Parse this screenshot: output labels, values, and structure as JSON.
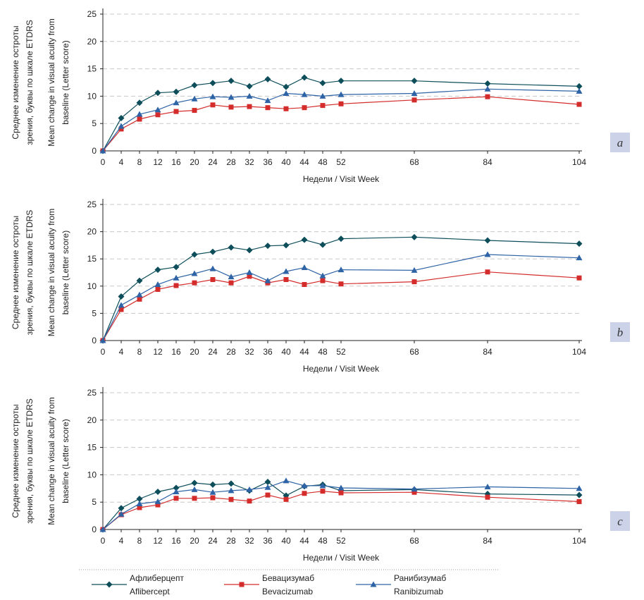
{
  "chart_data": [
    {
      "type": "line",
      "panel_label": "a",
      "y_axis_label_ru": [
        "Среднее изменение остроты",
        "зрения, буквы по шкале ETDRS"
      ],
      "y_axis_label_en": [
        "Mean change in visual acuity from",
        "baseline (Letter score)"
      ],
      "xlabel": "Недели / Visit Week",
      "ylim": [
        0,
        25
      ],
      "yticks": [
        0,
        5,
        10,
        15,
        20,
        25
      ],
      "x": [
        0,
        4,
        8,
        12,
        16,
        20,
        24,
        28,
        32,
        36,
        40,
        44,
        48,
        52,
        68,
        84,
        104
      ],
      "series": [
        {
          "name": "Афлиберцепт / Aflibercept",
          "values": [
            0,
            6.0,
            8.8,
            10.6,
            10.8,
            12.0,
            12.4,
            12.8,
            11.8,
            13.1,
            11.7,
            13.4,
            12.4,
            12.8,
            12.8,
            12.3,
            11.8
          ]
        },
        {
          "name": "Бевацизумаб / Bevacizumab",
          "values": [
            0,
            4.0,
            5.8,
            6.6,
            7.2,
            7.4,
            8.4,
            8.0,
            8.1,
            7.9,
            7.7,
            7.9,
            8.3,
            8.6,
            9.3,
            9.9,
            8.5
          ]
        },
        {
          "name": "Ранибизумаб / Ranibizumab",
          "values": [
            0,
            4.5,
            6.7,
            7.5,
            8.8,
            9.5,
            9.9,
            9.8,
            10.0,
            9.2,
            10.5,
            10.3,
            10.0,
            10.3,
            10.5,
            11.3,
            10.9
          ]
        }
      ]
    },
    {
      "type": "line",
      "panel_label": "b",
      "y_axis_label_ru": [
        "Среднее изменение остроты",
        "зрения, буквы по шкале ETDRS"
      ],
      "y_axis_label_en": [
        "Mean change in visual acuity from",
        "baseline (Letter score)"
      ],
      "xlabel": "Недели / Visit Week",
      "ylim": [
        0,
        25
      ],
      "yticks": [
        0,
        5,
        10,
        15,
        20,
        25
      ],
      "x": [
        0,
        4,
        8,
        12,
        16,
        20,
        24,
        28,
        32,
        36,
        40,
        44,
        48,
        52,
        68,
        84,
        104
      ],
      "series": [
        {
          "name": "Афлиберцепт / Aflibercept",
          "values": [
            0,
            8.1,
            11.0,
            13.0,
            13.5,
            15.8,
            16.3,
            17.1,
            16.6,
            17.4,
            17.5,
            18.5,
            17.6,
            18.7,
            19.0,
            18.4,
            17.8
          ]
        },
        {
          "name": "Бевацизумаб / Bevacizumab",
          "values": [
            0,
            5.7,
            7.6,
            9.4,
            10.1,
            10.6,
            11.2,
            10.6,
            11.8,
            10.6,
            11.2,
            10.3,
            11.0,
            10.4,
            10.8,
            12.6,
            11.5
          ]
        },
        {
          "name": "Ранибизумаб / Ranibizumab",
          "values": [
            0,
            6.5,
            8.4,
            10.3,
            11.5,
            12.3,
            13.2,
            11.7,
            12.5,
            11.0,
            12.7,
            13.4,
            11.9,
            13.0,
            12.9,
            15.8,
            15.2
          ]
        }
      ]
    },
    {
      "type": "line",
      "panel_label": "c",
      "y_axis_label_ru": [
        "Среднее изменение остроты",
        "зрения, буквы по шкале ETDRS"
      ],
      "y_axis_label_en": [
        "Mean change in visual acuity from",
        "baseline (Letter score)"
      ],
      "xlabel": "Недели / Visit Week",
      "ylim": [
        0,
        25
      ],
      "yticks": [
        0,
        5,
        10,
        15,
        20,
        25
      ],
      "x": [
        0,
        4,
        8,
        12,
        16,
        20,
        24,
        28,
        32,
        36,
        40,
        44,
        48,
        52,
        68,
        84,
        104
      ],
      "series": [
        {
          "name": "Афлиберцепт / Aflibercept",
          "values": [
            0,
            3.9,
            5.6,
            6.9,
            7.6,
            8.5,
            8.2,
            8.4,
            7.1,
            8.7,
            6.2,
            7.9,
            8.2,
            7.1,
            7.3,
            6.5,
            6.3
          ]
        },
        {
          "name": "Бевацизумаб / Bevacizumab",
          "values": [
            0,
            2.7,
            4.0,
            4.5,
            5.7,
            5.7,
            5.8,
            5.5,
            5.2,
            6.3,
            5.5,
            6.6,
            7.0,
            6.7,
            6.8,
            5.9,
            5.1
          ]
        },
        {
          "name": "Ранибизумаб / Ranibizumab",
          "values": [
            0,
            2.8,
            4.7,
            5.1,
            6.9,
            7.3,
            6.8,
            7.1,
            7.3,
            7.7,
            8.9,
            8.0,
            8.0,
            7.6,
            7.4,
            7.8,
            7.5
          ]
        }
      ]
    }
  ],
  "legend": [
    {
      "name_ru": "Афлиберцепт",
      "name_en": "Aflibercept",
      "color": "#0d4e5a",
      "marker": "diamond"
    },
    {
      "name_ru": "Бевацизумаб",
      "name_en": "Bevacizumab",
      "color": "#d42b2b",
      "marker": "square"
    },
    {
      "name_ru": "Ранибизумаб",
      "name_en": "Ranibizumab",
      "color": "#2e63a6",
      "marker": "triangle"
    }
  ],
  "colors": {
    "panel_tag_bg": "#ccd3e8",
    "grid": "#c8c8c8",
    "axis": "#222222"
  }
}
